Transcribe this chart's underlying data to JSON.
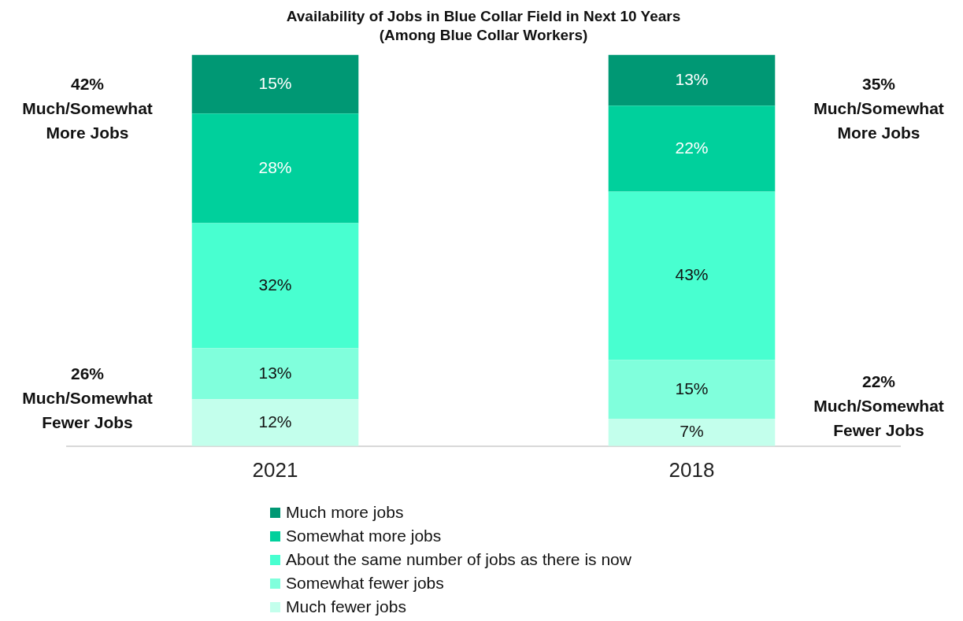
{
  "chart_data": {
    "type": "bar",
    "title": "Availability of Jobs in Blue Collar Field in Next 10 Years",
    "subtitle": "(Among Blue Collar Workers)",
    "categories": [
      "2021",
      "2018"
    ],
    "stacked": true,
    "tick_labels": "x",
    "grid": false,
    "legend": "bottom",
    "series": [
      {
        "name": "Much fewer jobs",
        "color": "#c3ffec",
        "values": [
          12,
          7
        ],
        "value_labels": [
          "12%",
          "7%"
        ]
      },
      {
        "name": "Somewhat fewer jobs",
        "color": "#80ffdc",
        "values": [
          13,
          15
        ],
        "value_labels": [
          "13%",
          "15%"
        ]
      },
      {
        "name": "About the same number of jobs as there is now",
        "color": "#48ffd0",
        "values": [
          32,
          43
        ],
        "value_labels": [
          "32%",
          "43%"
        ]
      },
      {
        "name": "Somewhat more jobs",
        "color": "#00d09c",
        "values": [
          28,
          22
        ],
        "value_labels": [
          "28%",
          "22%"
        ]
      },
      {
        "name": "Much more jobs",
        "color": "#009874",
        "values": [
          15,
          13
        ],
        "value_labels": [
          "15%",
          "13%"
        ]
      }
    ],
    "annotations": [
      "42%\nMuch/Somewhat\nMore Jobs",
      "26%\nMuch/Somewhat\nFewer Jobs",
      "35%\nMuch/Somewhat\nMore Jobs",
      "22%\nMuch/Somewhat\nFewer Jobs"
    ]
  }
}
